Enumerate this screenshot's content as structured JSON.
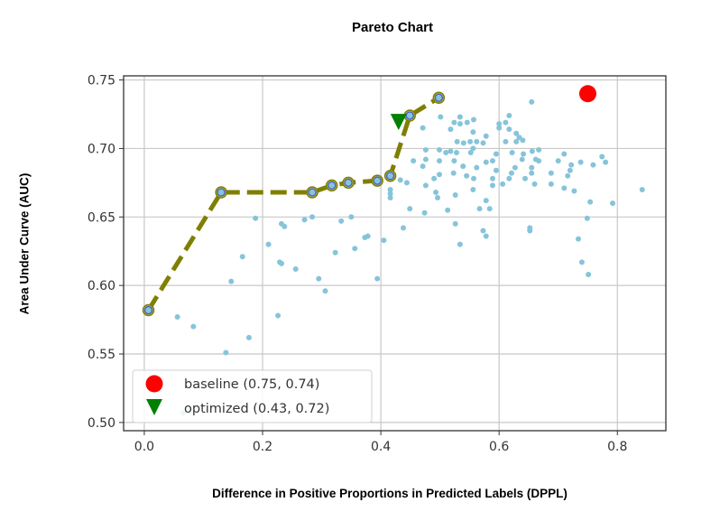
{
  "chart_data": {
    "type": "scatter",
    "title": "Pareto Chart",
    "xlabel": "Difference in Positive Proportions in Predicted Labels (DPPL)",
    "ylabel": "Area Under Curve (AUC)",
    "xlim": [
      -0.035,
      0.882
    ],
    "ylim": [
      0.494,
      0.753
    ],
    "xticks": [
      "0.0",
      "0.2",
      "0.4",
      "0.6",
      "0.8"
    ],
    "yticks": [
      "0.50",
      "0.55",
      "0.60",
      "0.65",
      "0.70",
      "0.75"
    ],
    "grid": true,
    "legend_position": "lower-left",
    "colors": {
      "scatter": "#86c4da",
      "pareto_line": "#7f7f00",
      "pareto_marker_fill": "#86c4da",
      "pareto_marker_edge": "#3f5fc8",
      "baseline": "#ff0000",
      "optimized": "#008000"
    },
    "scatter": {
      "x": [
        0.188,
        0.232,
        0.237,
        0.271,
        0.284,
        0.333,
        0.35,
        0.438,
        0.21,
        0.166,
        0.229,
        0.232,
        0.256,
        0.323,
        0.356,
        0.373,
        0.378,
        0.405,
        0.147,
        0.295,
        0.306,
        0.394,
        0.056,
        0.083,
        0.226,
        0.177,
        0.138,
        0.066,
        0.449,
        0.474,
        0.513,
        0.567,
        0.584,
        0.578,
        0.754,
        0.792,
        0.749,
        0.526,
        0.573,
        0.578,
        0.534,
        0.652,
        0.652,
        0.734,
        0.74,
        0.751,
        0.655,
        0.501,
        0.471,
        0.518,
        0.524,
        0.534,
        0.534,
        0.546,
        0.557,
        0.556,
        0.578,
        0.529,
        0.54,
        0.551,
        0.562,
        0.573,
        0.6,
        0.6,
        0.611,
        0.617,
        0.617,
        0.629,
        0.634,
        0.64,
        0.611,
        0.629,
        0.476,
        0.499,
        0.518,
        0.51,
        0.528,
        0.556,
        0.552,
        0.595,
        0.622,
        0.641,
        0.656,
        0.667,
        0.71,
        0.774,
        0.455,
        0.476,
        0.499,
        0.524,
        0.578,
        0.589,
        0.639,
        0.662,
        0.667,
        0.7,
        0.722,
        0.738,
        0.759,
        0.78,
        0.471,
        0.539,
        0.562,
        0.627,
        0.655,
        0.499,
        0.523,
        0.595,
        0.621,
        0.655,
        0.688,
        0.72,
        0.49,
        0.545,
        0.557,
        0.589,
        0.617,
        0.644,
        0.716,
        0.433,
        0.444,
        0.476,
        0.589,
        0.606,
        0.66,
        0.688,
        0.416,
        0.416,
        0.416,
        0.493,
        0.496,
        0.526,
        0.556,
        0.71,
        0.727,
        0.842
      ],
      "y": [
        0.649,
        0.645,
        0.643,
        0.648,
        0.65,
        0.647,
        0.65,
        0.642,
        0.63,
        0.621,
        0.617,
        0.616,
        0.612,
        0.624,
        0.627,
        0.635,
        0.636,
        0.633,
        0.603,
        0.605,
        0.596,
        0.605,
        0.577,
        0.57,
        0.578,
        0.562,
        0.551,
        0.507,
        0.656,
        0.653,
        0.655,
        0.656,
        0.656,
        0.662,
        0.661,
        0.66,
        0.649,
        0.645,
        0.64,
        0.636,
        0.63,
        0.642,
        0.64,
        0.634,
        0.617,
        0.608,
        0.734,
        0.723,
        0.715,
        0.714,
        0.719,
        0.723,
        0.718,
        0.719,
        0.721,
        0.712,
        0.709,
        0.705,
        0.704,
        0.705,
        0.705,
        0.704,
        0.718,
        0.715,
        0.719,
        0.724,
        0.714,
        0.711,
        0.708,
        0.706,
        0.705,
        0.705,
        0.699,
        0.699,
        0.698,
        0.697,
        0.697,
        0.7,
        0.697,
        0.696,
        0.697,
        0.696,
        0.698,
        0.699,
        0.696,
        0.694,
        0.691,
        0.692,
        0.691,
        0.691,
        0.69,
        0.691,
        0.692,
        0.692,
        0.691,
        0.691,
        0.688,
        0.69,
        0.688,
        0.69,
        0.687,
        0.687,
        0.686,
        0.686,
        0.686,
        0.681,
        0.682,
        0.684,
        0.682,
        0.682,
        0.682,
        0.684,
        0.678,
        0.68,
        0.678,
        0.678,
        0.678,
        0.678,
        0.68,
        0.677,
        0.675,
        0.673,
        0.673,
        0.674,
        0.674,
        0.674,
        0.67,
        0.667,
        0.664,
        0.668,
        0.664,
        0.666,
        0.67,
        0.671,
        0.669,
        0.67
      ]
    },
    "pareto_front": {
      "x": [
        0.007,
        0.13,
        0.284,
        0.317,
        0.345,
        0.394,
        0.416,
        0.449,
        0.498
      ],
      "y": [
        0.582,
        0.668,
        0.668,
        0.673,
        0.675,
        0.6765,
        0.68,
        0.724,
        0.737
      ]
    },
    "legend": [
      {
        "label": "baseline (0.75, 0.74)",
        "marker": "circle",
        "x": 0.75,
        "y": 0.74
      },
      {
        "label": "optimized (0.43, 0.72)",
        "marker": "triangle-down",
        "x": 0.43,
        "y": 0.72
      }
    ]
  }
}
